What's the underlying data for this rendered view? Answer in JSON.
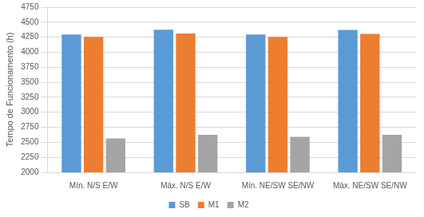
{
  "chart_data": {
    "type": "bar",
    "y_label": "Tempo de Funcionamento (h)",
    "categories": [
      "Mín. N/S E/W",
      "Máx. N/S E/W",
      "Mín. NE/SW SE/NW",
      "Máx. NE/SW SE/NW"
    ],
    "series": [
      {
        "name": "SB",
        "color": "#5b9bd5",
        "values": [
          4295,
          4375,
          4295,
          4370
        ]
      },
      {
        "name": "M1",
        "color": "#ed7d31",
        "values": [
          4255,
          4310,
          4255,
          4305
        ]
      },
      {
        "name": "M2",
        "color": "#a5a5a5",
        "values": [
          2565,
          2625,
          2590,
          2625
        ]
      }
    ],
    "ylim": [
      2000,
      4750
    ],
    "yticks": [
      2000,
      2250,
      2500,
      2750,
      3000,
      3250,
      3500,
      3750,
      4000,
      4250,
      4500,
      4750
    ],
    "grid": true,
    "legend": "bottom"
  }
}
